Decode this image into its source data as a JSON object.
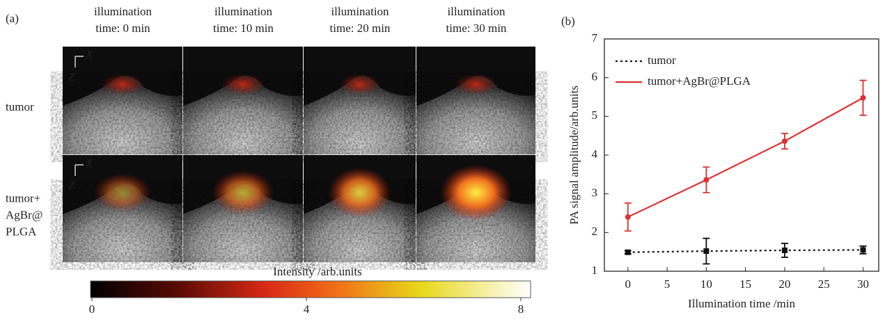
{
  "panel_a": {
    "label": "(a)",
    "column_titles": [
      [
        "illumination",
        "time: 0 min"
      ],
      [
        "illumination",
        "time: 10 min"
      ],
      [
        "illumination",
        "time: 20 min"
      ],
      [
        "illumination",
        "time: 30 min"
      ]
    ],
    "row_labels": [
      [
        "tumor"
      ],
      [
        "tumor+",
        "AgBr@",
        "PLGA"
      ]
    ],
    "axis_x": "X",
    "axis_z": "Z",
    "colorbar": {
      "title": "Intensity /arb.units",
      "ticks": [
        0,
        4,
        8
      ]
    }
  },
  "chart_data": {
    "type": "line",
    "panel_label": "(b)",
    "x": [
      0,
      10,
      20,
      30
    ],
    "series": [
      {
        "name": "tumor",
        "color": "#111111",
        "dash": "dotted",
        "values": [
          1.49,
          1.52,
          1.54,
          1.55
        ],
        "errors": [
          0.04,
          0.33,
          0.18,
          0.1
        ]
      },
      {
        "name": "tumor+AgBr@PLGA",
        "color": "#e03030",
        "dash": "solid",
        "values": [
          2.4,
          3.36,
          4.36,
          5.48
        ],
        "errors": [
          0.36,
          0.33,
          0.2,
          0.45
        ]
      }
    ],
    "xlabel": "Illumination time /min",
    "ylabel": "PA signal amplitude/arb.units",
    "xlim": [
      -3,
      32
    ],
    "ylim": [
      1,
      7
    ],
    "xticks": [
      0,
      5,
      10,
      15,
      20,
      25,
      30
    ],
    "yticks": [
      1,
      2,
      3,
      4,
      5,
      6,
      7
    ],
    "legend": "upper left"
  }
}
